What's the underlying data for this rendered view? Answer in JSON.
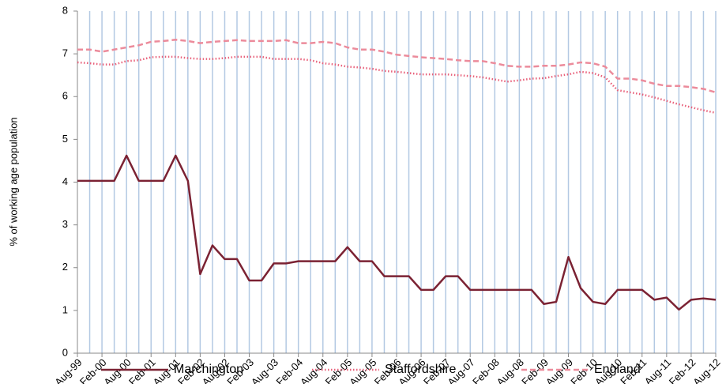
{
  "chart_data": {
    "type": "line",
    "ylabel": "% of working age population",
    "categories": [
      "Aug-99",
      null,
      "Feb-00",
      null,
      "Aug-00",
      null,
      "Feb-01",
      null,
      "Aug-01",
      null,
      "Feb-02",
      null,
      "Aug-02",
      null,
      "Feb-03",
      null,
      "Aug-03",
      null,
      "Feb-04",
      null,
      "Aug-04",
      null,
      "Feb-05",
      null,
      "Aug-05",
      null,
      "Feb-06",
      null,
      "Aug-06",
      null,
      "Feb-07",
      null,
      "Aug-07",
      null,
      "Feb-08",
      null,
      "Aug-08",
      null,
      "Feb-09",
      null,
      "Aug-09",
      null,
      "Feb-10",
      null,
      "Aug-10",
      null,
      "Feb-11",
      null,
      "Aug-11",
      null,
      "Feb-12",
      null,
      "Aug-12"
    ],
    "series": [
      {
        "name": "Marchington",
        "color": "#7b2233",
        "dash": "solid",
        "values": [
          4.03,
          4.03,
          4.03,
          4.03,
          4.62,
          4.03,
          4.03,
          4.03,
          4.62,
          4.03,
          1.85,
          2.52,
          2.2,
          2.2,
          1.7,
          1.7,
          2.1,
          2.1,
          2.15,
          2.15,
          2.15,
          2.15,
          2.48,
          2.15,
          2.15,
          1.8,
          1.8,
          1.8,
          1.48,
          1.48,
          1.8,
          1.8,
          1.48,
          1.48,
          1.48,
          1.48,
          1.48,
          1.48,
          1.15,
          1.2,
          2.25,
          1.52,
          1.2,
          1.15,
          1.48,
          1.48,
          1.48,
          1.25,
          1.3,
          1.02,
          1.25,
          1.28,
          1.25
        ]
      },
      {
        "name": "Staffordshire",
        "color": "#e8607a",
        "dash": "dotted",
        "values": [
          6.8,
          6.78,
          6.75,
          6.75,
          6.83,
          6.85,
          6.92,
          6.93,
          6.93,
          6.9,
          6.88,
          6.88,
          6.9,
          6.93,
          6.93,
          6.93,
          6.88,
          6.88,
          6.88,
          6.85,
          6.78,
          6.75,
          6.7,
          6.68,
          6.65,
          6.6,
          6.58,
          6.55,
          6.52,
          6.52,
          6.52,
          6.5,
          6.48,
          6.45,
          6.4,
          6.35,
          6.38,
          6.42,
          6.43,
          6.48,
          6.52,
          6.58,
          6.55,
          6.45,
          6.15,
          6.1,
          6.05,
          5.98,
          5.9,
          5.82,
          5.75,
          5.68,
          5.62
        ]
      },
      {
        "name": "England",
        "color": "#ec8b9b",
        "dash": "dashed",
        "values": [
          7.1,
          7.1,
          7.05,
          7.1,
          7.15,
          7.2,
          7.28,
          7.3,
          7.33,
          7.3,
          7.25,
          7.28,
          7.3,
          7.32,
          7.3,
          7.3,
          7.3,
          7.32,
          7.25,
          7.25,
          7.28,
          7.25,
          7.15,
          7.1,
          7.1,
          7.05,
          6.98,
          6.95,
          6.92,
          6.9,
          6.88,
          6.85,
          6.83,
          6.83,
          6.78,
          6.72,
          6.7,
          6.7,
          6.72,
          6.72,
          6.75,
          6.8,
          6.78,
          6.7,
          6.42,
          6.42,
          6.38,
          6.3,
          6.25,
          6.25,
          6.22,
          6.18,
          6.1
        ]
      }
    ],
    "ylim": [
      0,
      8
    ],
    "yticks": [
      0,
      1,
      2,
      3,
      4,
      5,
      6,
      7,
      8
    ],
    "xgrid": true,
    "grid_color": "#b3c9e3",
    "legend": "bottom"
  }
}
